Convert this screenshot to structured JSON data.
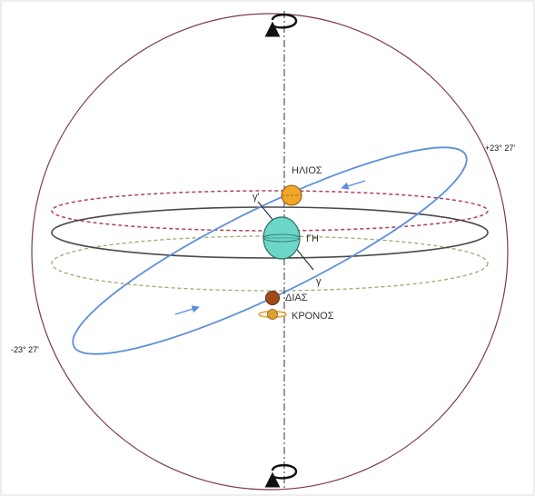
{
  "labels": {
    "sun": "ΗΛΙΟΣ",
    "earth": "ΓΗ",
    "jupiter": "ΔΙΑΣ",
    "saturn": "ΚΡΟΝΟΣ",
    "gamma": "γ",
    "gamma_prime": "γ'",
    "tilt_upper": "+23° 27'",
    "tilt_lower": "-23° 27'"
  },
  "colors": {
    "sphere": "#7a3b4e",
    "equator": "#4a4a4a",
    "tropic_upper": "#b0405f",
    "tropic_lower": "#9aab6e",
    "ecliptic": "#5b8fd9",
    "axis": "#444444",
    "sun": "#f0a626",
    "earth": "#6cd6c8",
    "jupiter": "#a24b19",
    "saturn": "#e0a030"
  },
  "icons": {
    "top": "rotation-arrow-icon",
    "bottom": "rotation-arrow-icon"
  }
}
